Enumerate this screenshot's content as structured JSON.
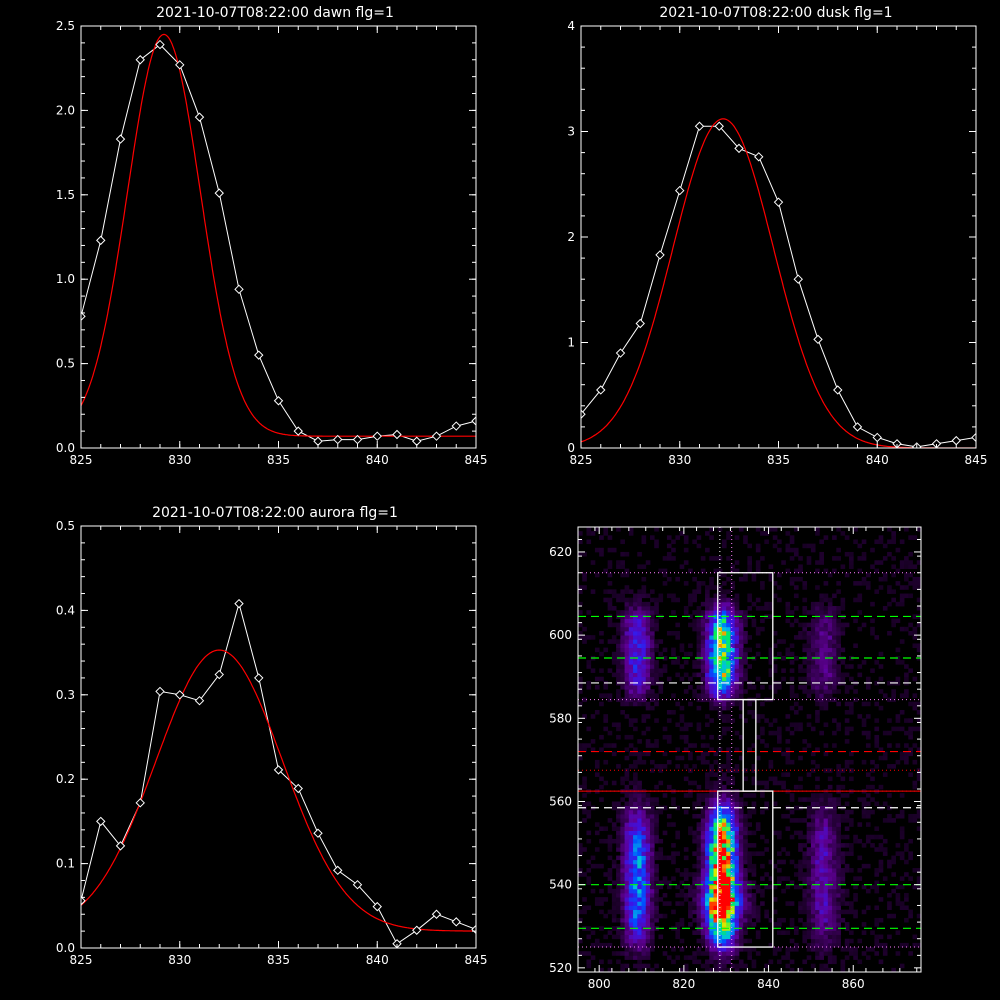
{
  "chart_data": [
    {
      "type": "line",
      "title": "2021-10-07T08:22:00 dawn flg=1",
      "xlim": [
        825,
        845
      ],
      "ylim": [
        0,
        2.5
      ],
      "x_ticks": [
        "825",
        "830",
        "835",
        "840",
        "845"
      ],
      "y_ticks": [
        "0.0",
        "0.5",
        "1.0",
        "1.5",
        "2.0",
        "2.5"
      ],
      "series": [
        {
          "kind": "measured",
          "color": "#ffffff",
          "marker": "diamond",
          "x": [
            825,
            826,
            827,
            828,
            829,
            830,
            831,
            832,
            833,
            834,
            835,
            836,
            837,
            838,
            839,
            840,
            841,
            842,
            843,
            844,
            845
          ],
          "y": [
            0.78,
            1.23,
            1.83,
            2.3,
            2.39,
            2.27,
            1.96,
            1.51,
            0.94,
            0.55,
            0.28,
            0.1,
            0.04,
            0.05,
            0.05,
            0.07,
            0.08,
            0.04,
            0.07,
            0.13,
            0.16
          ]
        },
        {
          "kind": "fit",
          "color": "#ff0000",
          "shape": "gaussian",
          "amplitude": 2.38,
          "center": 829.2,
          "sigma": 1.85,
          "baseline": 0.07
        }
      ]
    },
    {
      "type": "line",
      "title": "2021-10-07T08:22:00 dusk flg=1",
      "xlim": [
        825,
        845
      ],
      "ylim": [
        0,
        4
      ],
      "x_ticks": [
        "825",
        "830",
        "835",
        "840",
        "845"
      ],
      "y_ticks": [
        "0",
        "1",
        "2",
        "3",
        "4"
      ],
      "series": [
        {
          "kind": "measured",
          "color": "#ffffff",
          "marker": "diamond",
          "x": [
            825,
            826,
            827,
            828,
            829,
            830,
            831,
            832,
            833,
            834,
            835,
            836,
            837,
            838,
            839,
            840,
            841,
            842,
            843,
            844,
            845
          ],
          "y": [
            0.32,
            0.55,
            0.9,
            1.18,
            1.83,
            2.44,
            3.05,
            3.05,
            2.84,
            2.76,
            2.33,
            1.6,
            1.03,
            0.55,
            0.2,
            0.1,
            0.04,
            0.01,
            0.04,
            0.07,
            0.1
          ]
        },
        {
          "kind": "fit",
          "color": "#ff0000",
          "shape": "gaussian",
          "amplitude": 3.12,
          "center": 832.2,
          "sigma": 2.55,
          "baseline": 0.0
        }
      ]
    },
    {
      "type": "line",
      "title": "2021-10-07T08:22:00 aurora flg=1",
      "xlim": [
        825,
        845
      ],
      "ylim": [
        0,
        0.5
      ],
      "x_ticks": [
        "825",
        "830",
        "835",
        "840",
        "845"
      ],
      "y_ticks": [
        "0.0",
        "0.1",
        "0.2",
        "0.3",
        "0.4",
        "0.5"
      ],
      "series": [
        {
          "kind": "measured",
          "color": "#ffffff",
          "marker": "diamond",
          "x": [
            825,
            826,
            827,
            828,
            829,
            830,
            831,
            832,
            833,
            834,
            835,
            836,
            837,
            838,
            839,
            840,
            841,
            842,
            843,
            844,
            845
          ],
          "y": [
            0.056,
            0.15,
            0.121,
            0.172,
            0.304,
            0.3,
            0.293,
            0.324,
            0.408,
            0.32,
            0.211,
            0.189,
            0.136,
            0.092,
            0.075,
            0.049,
            0.005,
            0.021,
            0.04,
            0.031,
            0.022
          ]
        },
        {
          "kind": "fit",
          "color": "#ff0000",
          "shape": "gaussian",
          "amplitude": 0.333,
          "center": 832.0,
          "sigma": 3.2,
          "baseline": 0.02
        }
      ]
    },
    {
      "type": "heatmap",
      "title": "",
      "xlim": [
        795,
        876
      ],
      "ylim": [
        519,
        626
      ],
      "x_ticks": [
        "800",
        "820",
        "840",
        "860"
      ],
      "y_ticks": [
        "520",
        "540",
        "560",
        "580",
        "600",
        "620"
      ],
      "colormap": "rainbow",
      "intensity_model": {
        "column_centers": [
          809,
          829,
          853
        ],
        "column_widths": [
          2.2,
          2.4,
          2.4
        ],
        "column_weights": [
          0.5,
          1.0,
          0.25
        ],
        "row_bands": [
          {
            "center": 596,
            "halfwidth": 9,
            "weight": 0.75
          },
          {
            "center": 542,
            "halfwidth": 14,
            "weight": 1.0
          }
        ],
        "hot_spot": {
          "x": 829.5,
          "y": 536,
          "radius": 4
        }
      },
      "overlays": {
        "vertical_dotted_lines": [
          {
            "x": 828.5,
            "color": "#ffffff"
          },
          {
            "x": 831.3,
            "color": "#ff80ff"
          }
        ],
        "horizontal_dashed_lines": [
          {
            "y": 604.5,
            "color": "#00ff00"
          },
          {
            "y": 594.5,
            "color": "#00ff00"
          },
          {
            "y": 588.5,
            "color": "#ffffff"
          },
          {
            "y": 572.0,
            "color": "#ff0000"
          },
          {
            "y": 558.5,
            "color": "#ffffff"
          },
          {
            "y": 540.0,
            "color": "#00ff00"
          },
          {
            "y": 529.5,
            "color": "#00ff00"
          }
        ],
        "horizontal_dotted_lines": [
          {
            "y": 615.0,
            "color": "#ff80ff"
          },
          {
            "y": 584.5,
            "color": "#ff80ff"
          },
          {
            "y": 567.5,
            "color": "#ff0000"
          },
          {
            "y": 562.5,
            "color": "#ff0000"
          },
          {
            "y": 525.0,
            "color": "#ff80ff"
          }
        ],
        "solid_lines": [
          {
            "y": 562.5,
            "color": "#ff0000"
          }
        ],
        "boxes": [
          {
            "x0": 828,
            "x1": 841,
            "y0": 584.5,
            "y1": 615,
            "color": "#ffffff"
          },
          {
            "x0": 834,
            "x1": 837,
            "y0": 562.5,
            "y1": 584.5,
            "color": "#ffffff"
          },
          {
            "x0": 828,
            "x1": 841,
            "y0": 525,
            "y1": 562.5,
            "color": "#ffffff"
          }
        ]
      }
    }
  ]
}
